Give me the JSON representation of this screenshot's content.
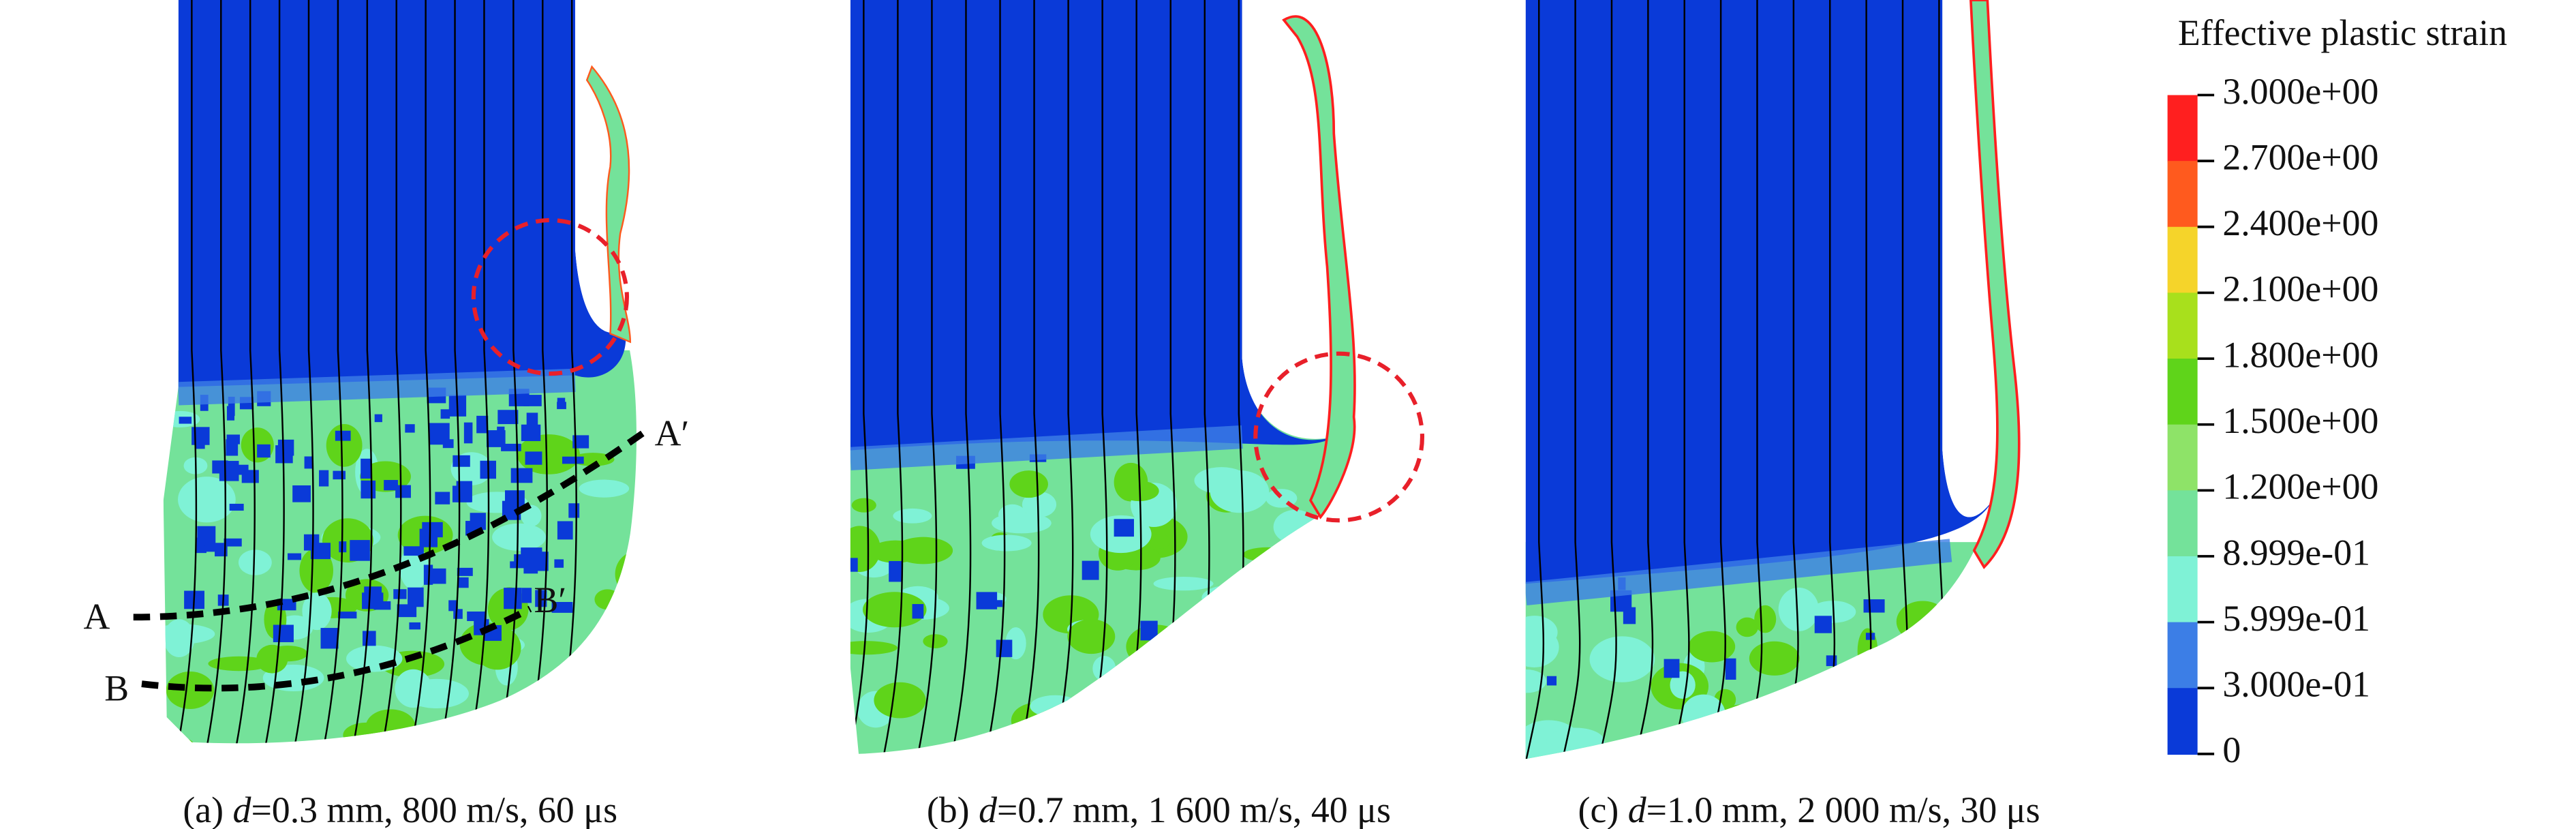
{
  "legend": {
    "title": "Effective plastic strain",
    "labels": [
      "3.000e+00",
      "2.700e+00",
      "2.400e+00",
      "2.100e+00",
      "1.800e+00",
      "1.500e+00",
      "1.200e+00",
      "8.999e-01",
      "5.999e-01",
      "3.000e-01",
      "0"
    ],
    "colors": [
      "#ff1f1f",
      "#ff5a1e",
      "#f5d42a",
      "#a8e01c",
      "#5fd41a",
      "#8ee368",
      "#74e29a",
      "#7ff2d6",
      "#3c7ee6",
      "#0a3ad8"
    ]
  },
  "annotations": [
    "A",
    "A′",
    "B",
    "B′"
  ],
  "captions": [
    {
      "label": "(a) ",
      "var": "d",
      "text": "=0.3 mm, 800 m/s, 60 μs"
    },
    {
      "label": "(b) ",
      "var": "d",
      "text": "=0.7 mm, 1 600 m/s, 40 μs"
    },
    {
      "label": "(c) ",
      "var": "d",
      "text": "=1.0 mm, 2 000 m/s, 30 μs"
    }
  ]
}
